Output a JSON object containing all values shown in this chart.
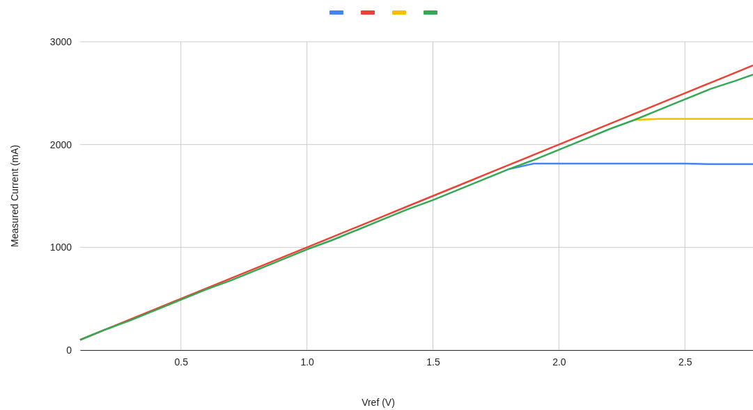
{
  "chart_data": {
    "type": "line",
    "xlabel": "Vref (V)",
    "ylabel": "Measured Current (mA)",
    "x": [
      0.1,
      0.2,
      0.3,
      0.4,
      0.5,
      0.6,
      0.7,
      0.8,
      0.9,
      1.0,
      1.1,
      1.2,
      1.3,
      1.4,
      1.5,
      1.6,
      1.7,
      1.8,
      1.9,
      2.0,
      2.1,
      2.2,
      2.3,
      2.4,
      2.5,
      2.6,
      2.7,
      2.77
    ],
    "series": [
      {
        "color": "#4285f4",
        "values": [
          null,
          null,
          null,
          null,
          null,
          null,
          null,
          null,
          null,
          null,
          null,
          null,
          null,
          null,
          null,
          null,
          null,
          1760,
          1815,
          1815,
          1815,
          1815,
          1815,
          1815,
          1815,
          1810,
          1810,
          1810
        ]
      },
      {
        "color": "#ea4335",
        "values": [
          100,
          200,
          300,
          400,
          500,
          600,
          700,
          800,
          900,
          1000,
          1100,
          1200,
          1300,
          1400,
          1500,
          1600,
          1700,
          1800,
          1900,
          2000,
          2100,
          2200,
          2300,
          2400,
          2500,
          2600,
          2700,
          2770
        ]
      },
      {
        "color": "#fbbc04",
        "values": [
          null,
          null,
          null,
          null,
          null,
          null,
          null,
          null,
          null,
          null,
          null,
          null,
          null,
          null,
          null,
          null,
          null,
          null,
          null,
          null,
          null,
          null,
          2240,
          2250,
          2250,
          2250,
          2250,
          2250
        ]
      },
      {
        "color": "#34a853",
        "values": [
          100,
          200,
          290,
          390,
          490,
          590,
          680,
          780,
          880,
          980,
          1070,
          1170,
          1270,
          1370,
          1460,
          1560,
          1660,
          1760,
          1850,
          1950,
          2050,
          2150,
          2240,
          2340,
          2440,
          2540,
          2620,
          2680
        ]
      }
    ],
    "xlim": [
      0.1,
      2.77
    ],
    "ylim": [
      0,
      3000
    ],
    "xticks": [
      0.5,
      {
        "value": 1,
        "label": "1.0"
      },
      1.5,
      {
        "value": 2,
        "label": "2.0"
      },
      2.5
    ],
    "yticks": [
      0,
      1000,
      2000,
      3000
    ],
    "grid": true,
    "marker": "none",
    "line_style": "solid"
  }
}
